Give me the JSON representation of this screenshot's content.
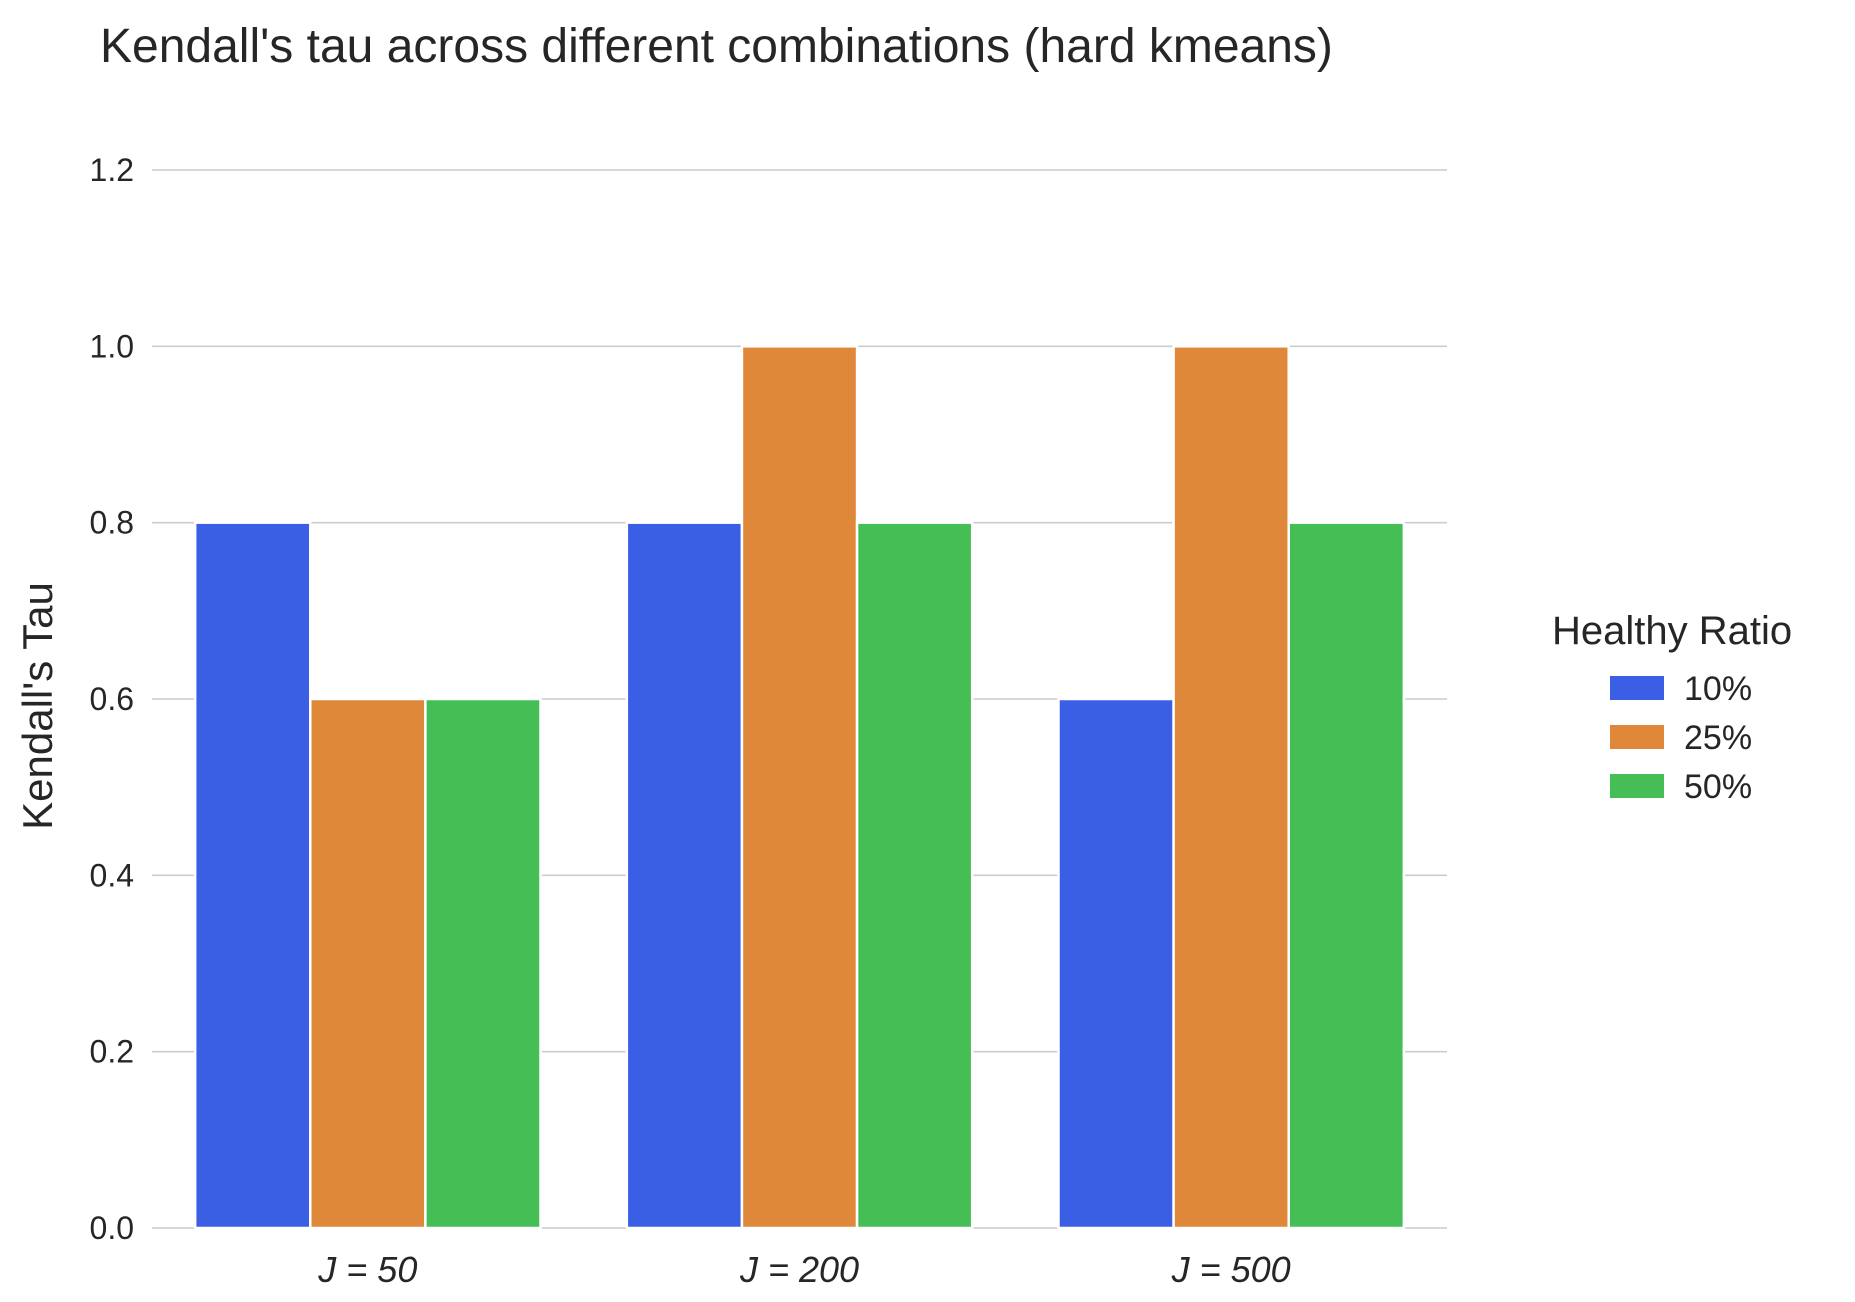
{
  "chart_data": {
    "type": "bar",
    "title": "Kendall's tau across different combinations (hard kmeans)",
    "xlabel": "",
    "ylabel": "Kendall's Tau",
    "categories": [
      "J = 50",
      "J = 200",
      "J = 500"
    ],
    "series": [
      {
        "name": "10%",
        "color": "#3a5fe5",
        "values": [
          0.8,
          0.8,
          0.6
        ]
      },
      {
        "name": "25%",
        "color": "#e0883a",
        "values": [
          0.6,
          1.0,
          1.0
        ]
      },
      {
        "name": "50%",
        "color": "#45bf55",
        "values": [
          0.6,
          0.8,
          0.8
        ]
      }
    ],
    "ylim": [
      0,
      1.2
    ],
    "yticks": [
      "0.0",
      "0.2",
      "0.4",
      "0.6",
      "0.8",
      "1.0",
      "1.2"
    ],
    "grid": true,
    "legend": {
      "title": "Healthy Ratio",
      "placement": "right"
    }
  }
}
